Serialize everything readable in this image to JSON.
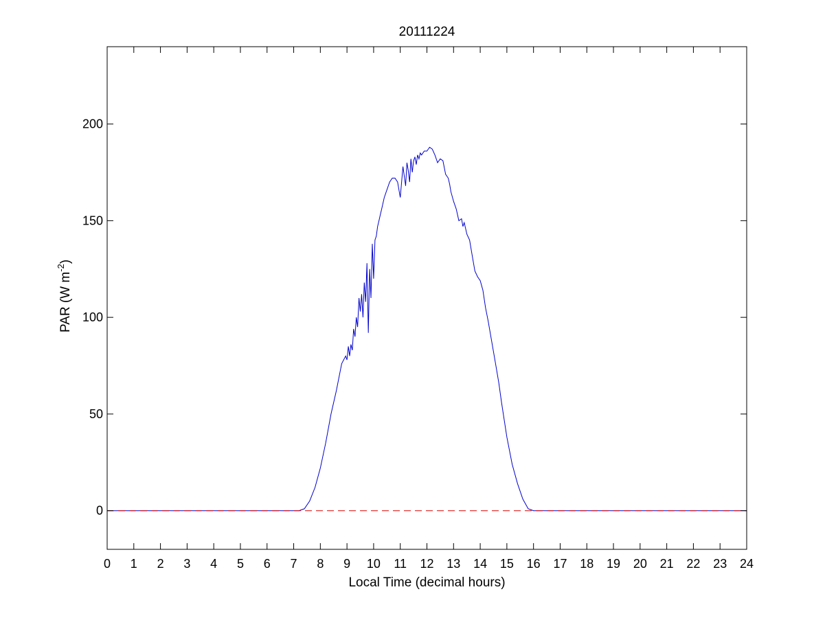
{
  "chart_data": {
    "type": "line",
    "title": "20111224",
    "xlabel": "Local Time (decimal hours)",
    "ylabel_main": "PAR (W m",
    "ylabel_sup": "-2",
    "ylabel_close": ")",
    "xlim": [
      0,
      24
    ],
    "ylim": [
      -20,
      240
    ],
    "xticks": [
      0,
      1,
      2,
      3,
      4,
      5,
      6,
      7,
      8,
      9,
      10,
      11,
      12,
      13,
      14,
      15,
      16,
      17,
      18,
      19,
      20,
      21,
      22,
      23,
      24
    ],
    "yticks": [
      0,
      50,
      100,
      150,
      200
    ],
    "grid": false,
    "series": [
      {
        "color": "#0000cc",
        "style": "solid",
        "x": [
          0,
          7.0,
          7.2,
          7.4,
          7.6,
          7.8,
          8.0,
          8.2,
          8.4,
          8.6,
          8.8,
          8.95,
          9.0,
          9.05,
          9.1,
          9.15,
          9.2,
          9.25,
          9.3,
          9.35,
          9.4,
          9.45,
          9.5,
          9.55,
          9.6,
          9.65,
          9.7,
          9.75,
          9.8,
          9.85,
          9.9,
          9.95,
          10.0,
          10.05,
          10.1,
          10.15,
          10.2,
          10.25,
          10.3,
          10.4,
          10.5,
          10.6,
          10.7,
          10.8,
          10.9,
          11.0,
          11.1,
          11.2,
          11.25,
          11.3,
          11.35,
          11.4,
          11.45,
          11.5,
          11.55,
          11.6,
          11.65,
          11.7,
          11.75,
          11.8,
          11.9,
          12.0,
          12.1,
          12.2,
          12.3,
          12.4,
          12.5,
          12.6,
          12.7,
          12.8,
          12.85,
          12.9,
          13.0,
          13.1,
          13.2,
          13.3,
          13.35,
          13.4,
          13.5,
          13.6,
          13.7,
          13.8,
          13.9,
          14.0,
          14.1,
          14.2,
          14.3,
          14.4,
          14.5,
          14.6,
          14.7,
          14.8,
          14.9,
          15.0,
          15.2,
          15.4,
          15.6,
          15.8,
          16.0,
          16.2,
          16.4,
          16.6,
          16.8,
          17.0,
          17.2,
          17.4,
          24
        ],
        "y": [
          0,
          0,
          0,
          1,
          5,
          12,
          22,
          35,
          50,
          62,
          76,
          80,
          78,
          85,
          80,
          86,
          83,
          94,
          90,
          100,
          95,
          110,
          103,
          112,
          100,
          118,
          108,
          128,
          92,
          125,
          110,
          138,
          120,
          140,
          142,
          147,
          150,
          153,
          156,
          162,
          166,
          170,
          172,
          172,
          170,
          162,
          178,
          168,
          180,
          176,
          170,
          182,
          175,
          181,
          183,
          179,
          184,
          182,
          185,
          184,
          186,
          186,
          188,
          187,
          184,
          180,
          182,
          181,
          174,
          172,
          169,
          165,
          160,
          156,
          150,
          151,
          147,
          149,
          143,
          140,
          132,
          124,
          121,
          119,
          114,
          105,
          98,
          90,
          82,
          74,
          66,
          56,
          47,
          38,
          24,
          14,
          6,
          1,
          0,
          0,
          0,
          0,
          0,
          0,
          0,
          0,
          0
        ]
      },
      {
        "color": "#dd0000",
        "style": "dashed",
        "x": [
          0,
          24
        ],
        "y": [
          0,
          0
        ]
      }
    ]
  }
}
